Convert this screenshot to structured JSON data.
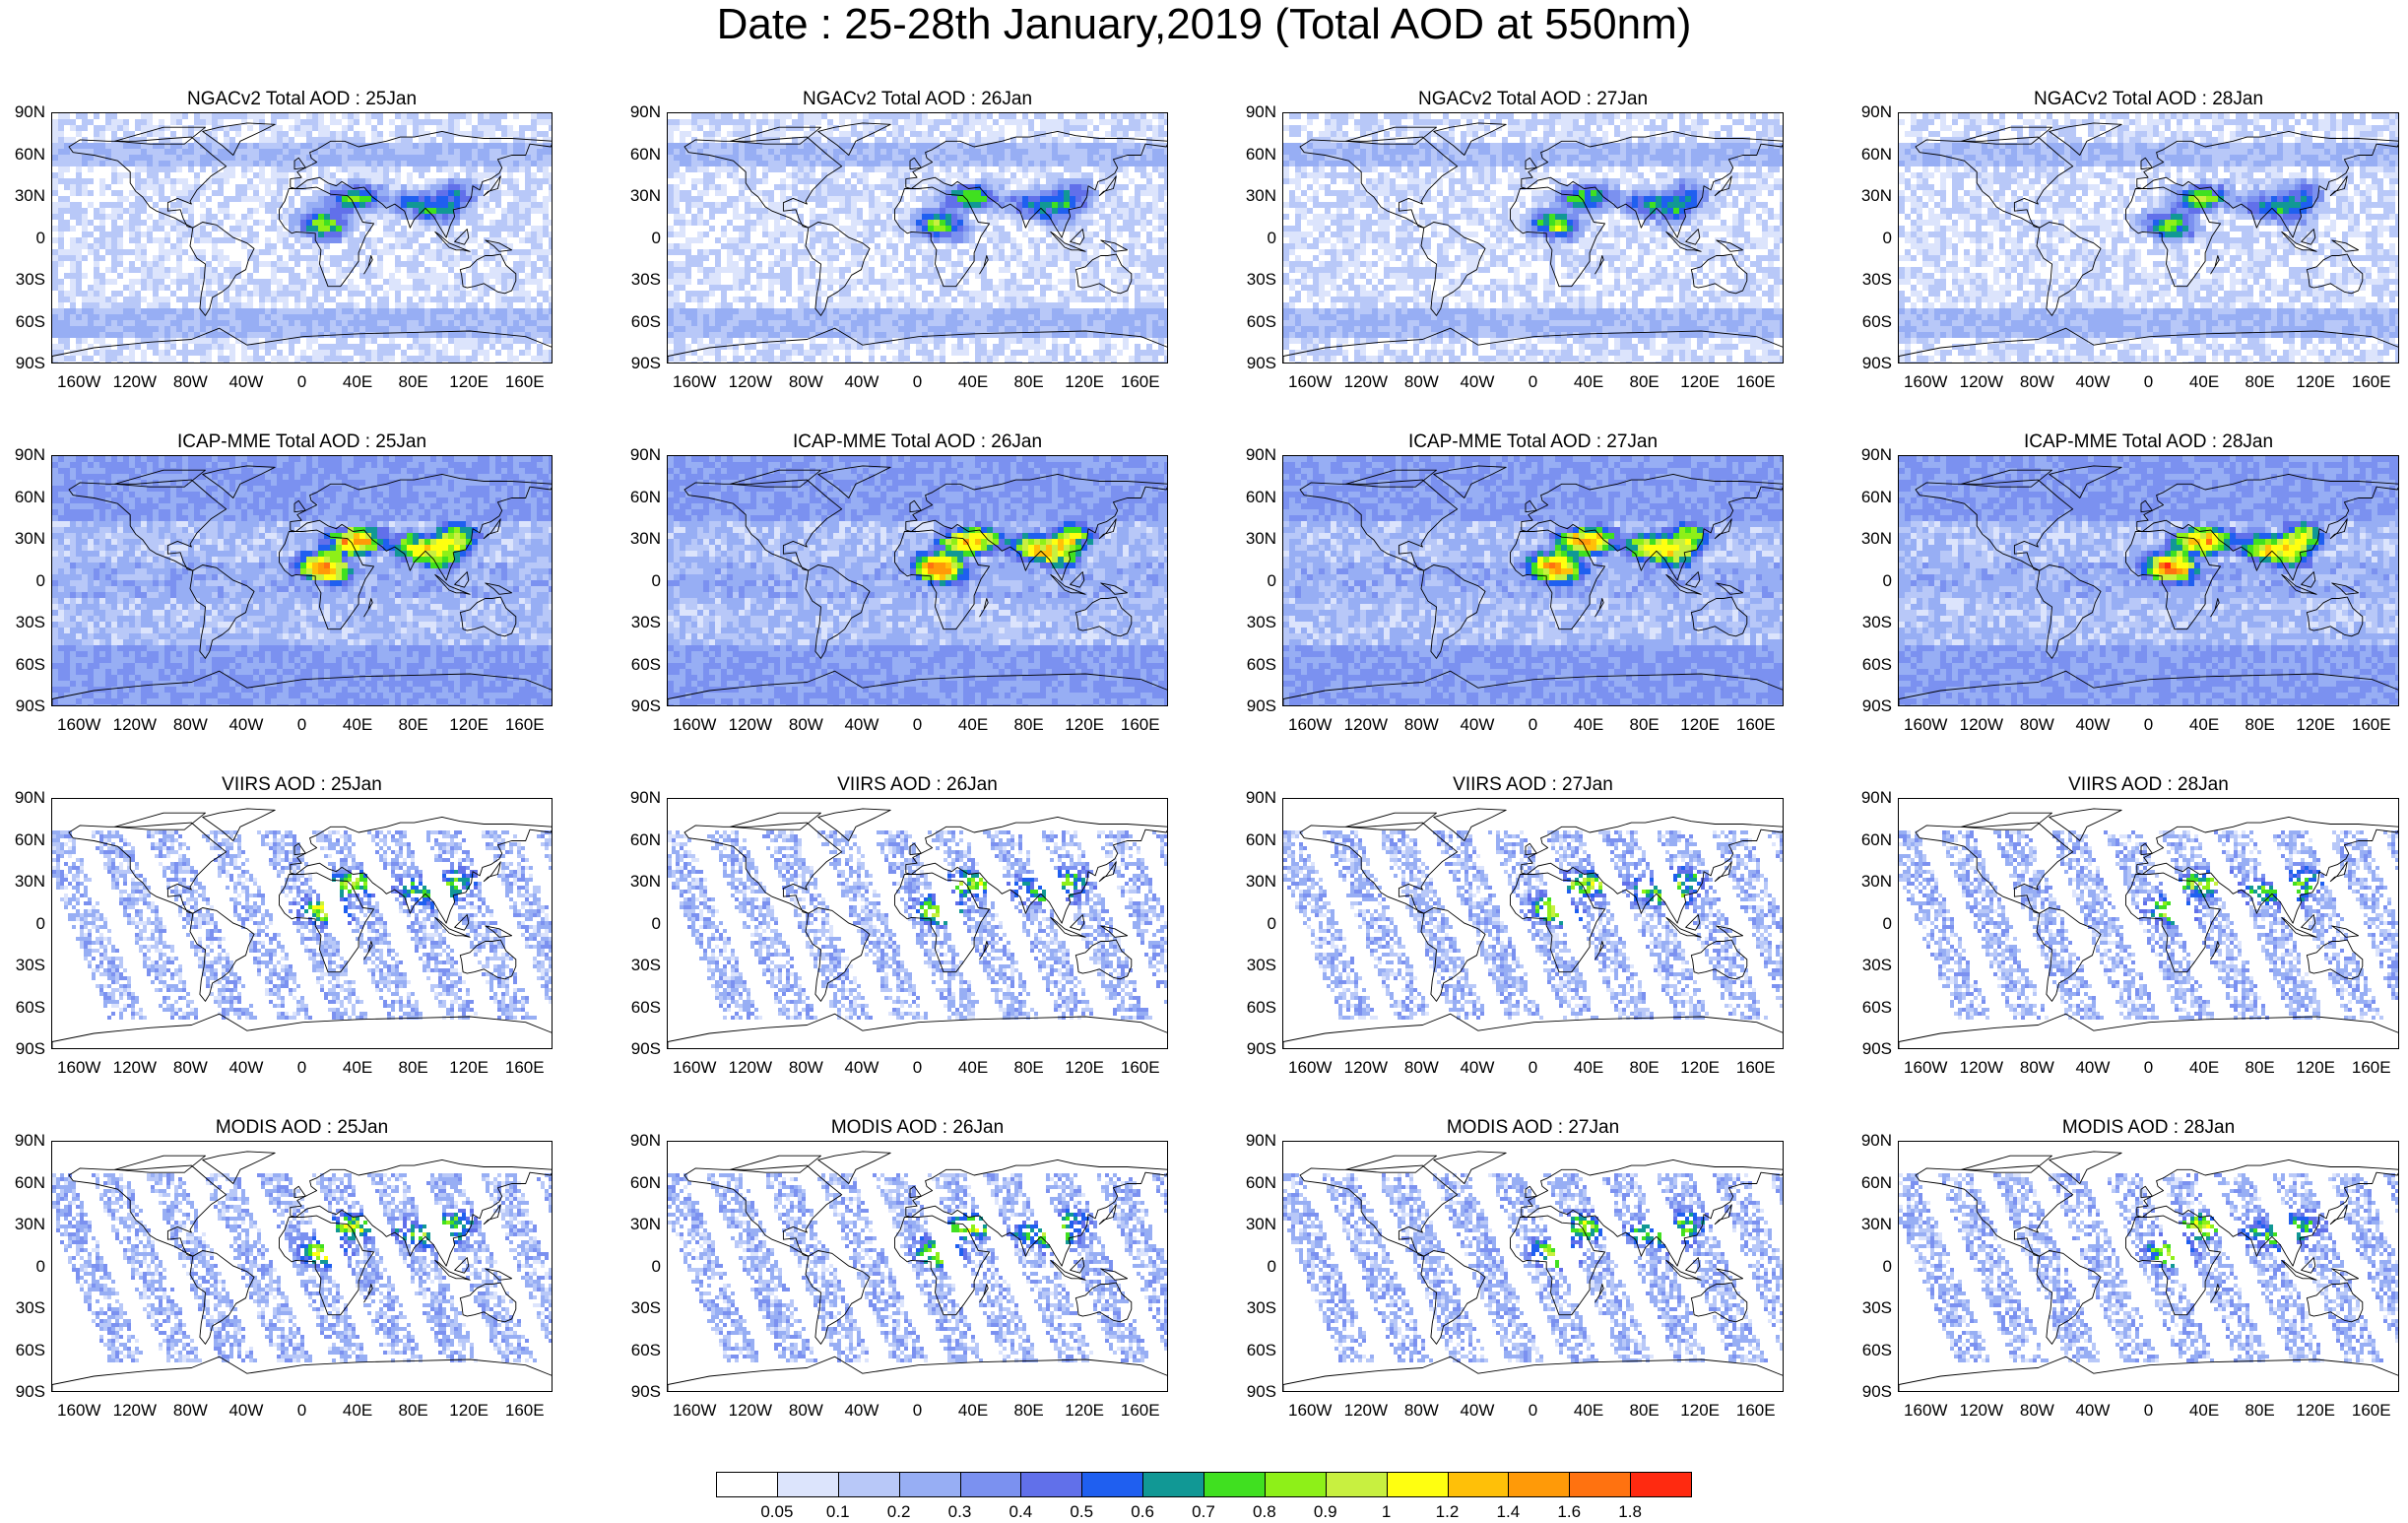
{
  "title": "Date : 25-28th January,2019 (Total AOD at 550nm)",
  "lat_ticks": [
    "90N",
    "60N",
    "30N",
    "0",
    "30S",
    "60S",
    "90S"
  ],
  "lon_ticks": [
    "160W",
    "120W",
    "80W",
    "40W",
    "0",
    "40E",
    "80E",
    "120E",
    "160E"
  ],
  "panels": [
    {
      "title": "NGACv2 Total AOD : 25Jan",
      "row": 0,
      "col": 0,
      "style": "ngac"
    },
    {
      "title": "NGACv2 Total AOD : 26Jan",
      "row": 0,
      "col": 1,
      "style": "ngac"
    },
    {
      "title": "NGACv2 Total AOD : 27Jan",
      "row": 0,
      "col": 2,
      "style": "ngac"
    },
    {
      "title": "NGACv2 Total AOD : 28Jan",
      "row": 0,
      "col": 3,
      "style": "ngac"
    },
    {
      "title": "ICAP-MME Total AOD : 25Jan",
      "row": 1,
      "col": 0,
      "style": "icap"
    },
    {
      "title": "ICAP-MME Total AOD : 26Jan",
      "row": 1,
      "col": 1,
      "style": "icap"
    },
    {
      "title": "ICAP-MME Total AOD : 27Jan",
      "row": 1,
      "col": 2,
      "style": "icap"
    },
    {
      "title": "ICAP-MME Total AOD : 28Jan",
      "row": 1,
      "col": 3,
      "style": "icap"
    },
    {
      "title": "VIIRS AOD : 25Jan",
      "row": 2,
      "col": 0,
      "style": "viirs"
    },
    {
      "title": "VIIRS AOD : 26Jan",
      "row": 2,
      "col": 1,
      "style": "viirs"
    },
    {
      "title": "VIIRS AOD : 27Jan",
      "row": 2,
      "col": 2,
      "style": "viirs"
    },
    {
      "title": "VIIRS AOD : 28Jan",
      "row": 2,
      "col": 3,
      "style": "viirs"
    },
    {
      "title": "MODIS AOD : 25Jan",
      "row": 3,
      "col": 0,
      "style": "modis"
    },
    {
      "title": "MODIS AOD : 26Jan",
      "row": 3,
      "col": 1,
      "style": "modis"
    },
    {
      "title": "MODIS AOD : 27Jan",
      "row": 3,
      "col": 2,
      "style": "modis"
    },
    {
      "title": "MODIS AOD : 28Jan",
      "row": 3,
      "col": 3,
      "style": "modis"
    }
  ],
  "colorbar": {
    "labels": [
      "0.05",
      "0.1",
      "0.2",
      "0.3",
      "0.4",
      "0.5",
      "0.6",
      "0.7",
      "0.8",
      "0.9",
      "1",
      "1.2",
      "1.4",
      "1.6",
      "1.8"
    ],
    "colors": [
      "#ffffff",
      "#dce4fc",
      "#b8c8f8",
      "#97aef4",
      "#7b91f0",
      "#6170ea",
      "#1f5ff0",
      "#119895",
      "#40e020",
      "#8ef018",
      "#c8f040",
      "#ffff10",
      "#ffc008",
      "#ff9a08",
      "#ff7210",
      "#ff2a10"
    ]
  }
}
